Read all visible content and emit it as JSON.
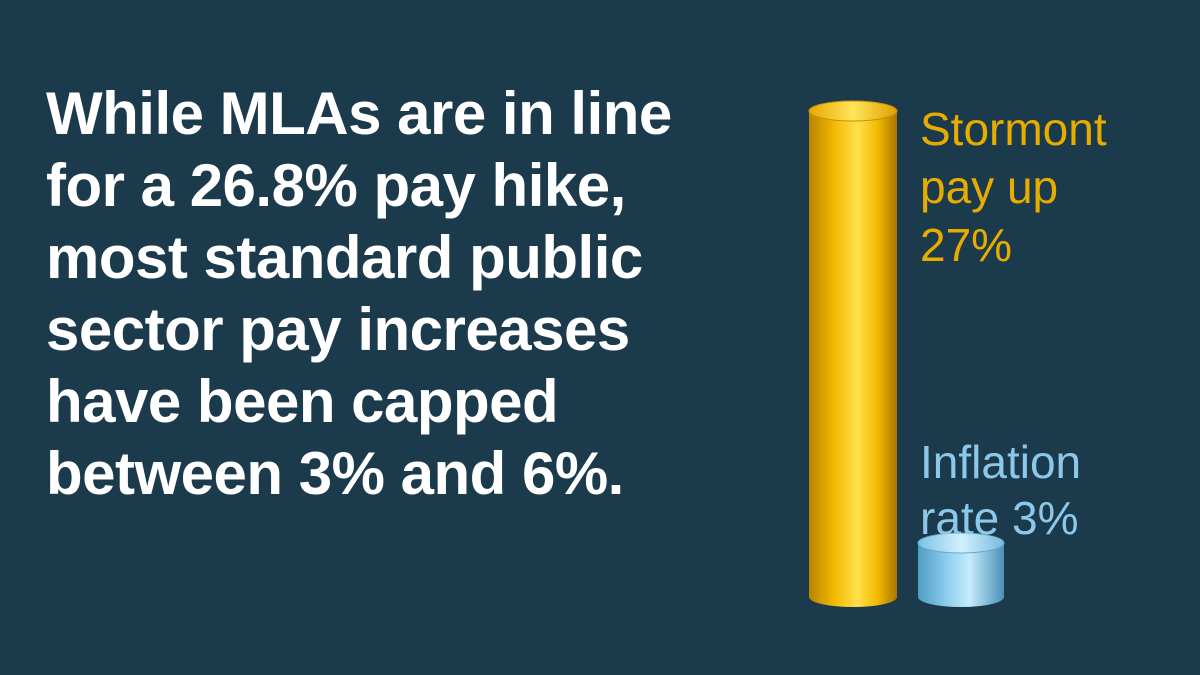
{
  "headline": {
    "lines": [
      "While MLAs are in line",
      "for a 26.8% pay hike,",
      "most standard public",
      "sector pay increases",
      "have been capped",
      "between 3% and 6%."
    ]
  },
  "colors": {
    "background": "#1b3a4b",
    "headline": "#ffffff",
    "stormont_bar": "#f5c000",
    "stormont_label": "#e7ac00",
    "inflation_bar": "#8fd0f0",
    "inflation_label": "#8dc8ea"
  },
  "chart_data": {
    "type": "bar",
    "style": "3d-cylinder",
    "unit": "%",
    "series": [
      {
        "key": "stormont",
        "value": 27,
        "label_lines": [
          "Stormont",
          "pay up",
          "27%"
        ],
        "color": "#f5c000"
      },
      {
        "key": "inflation",
        "value": 3,
        "label_lines": [
          "Inflation",
          "rate 3%"
        ],
        "color": "#8fd0f0"
      }
    ]
  }
}
